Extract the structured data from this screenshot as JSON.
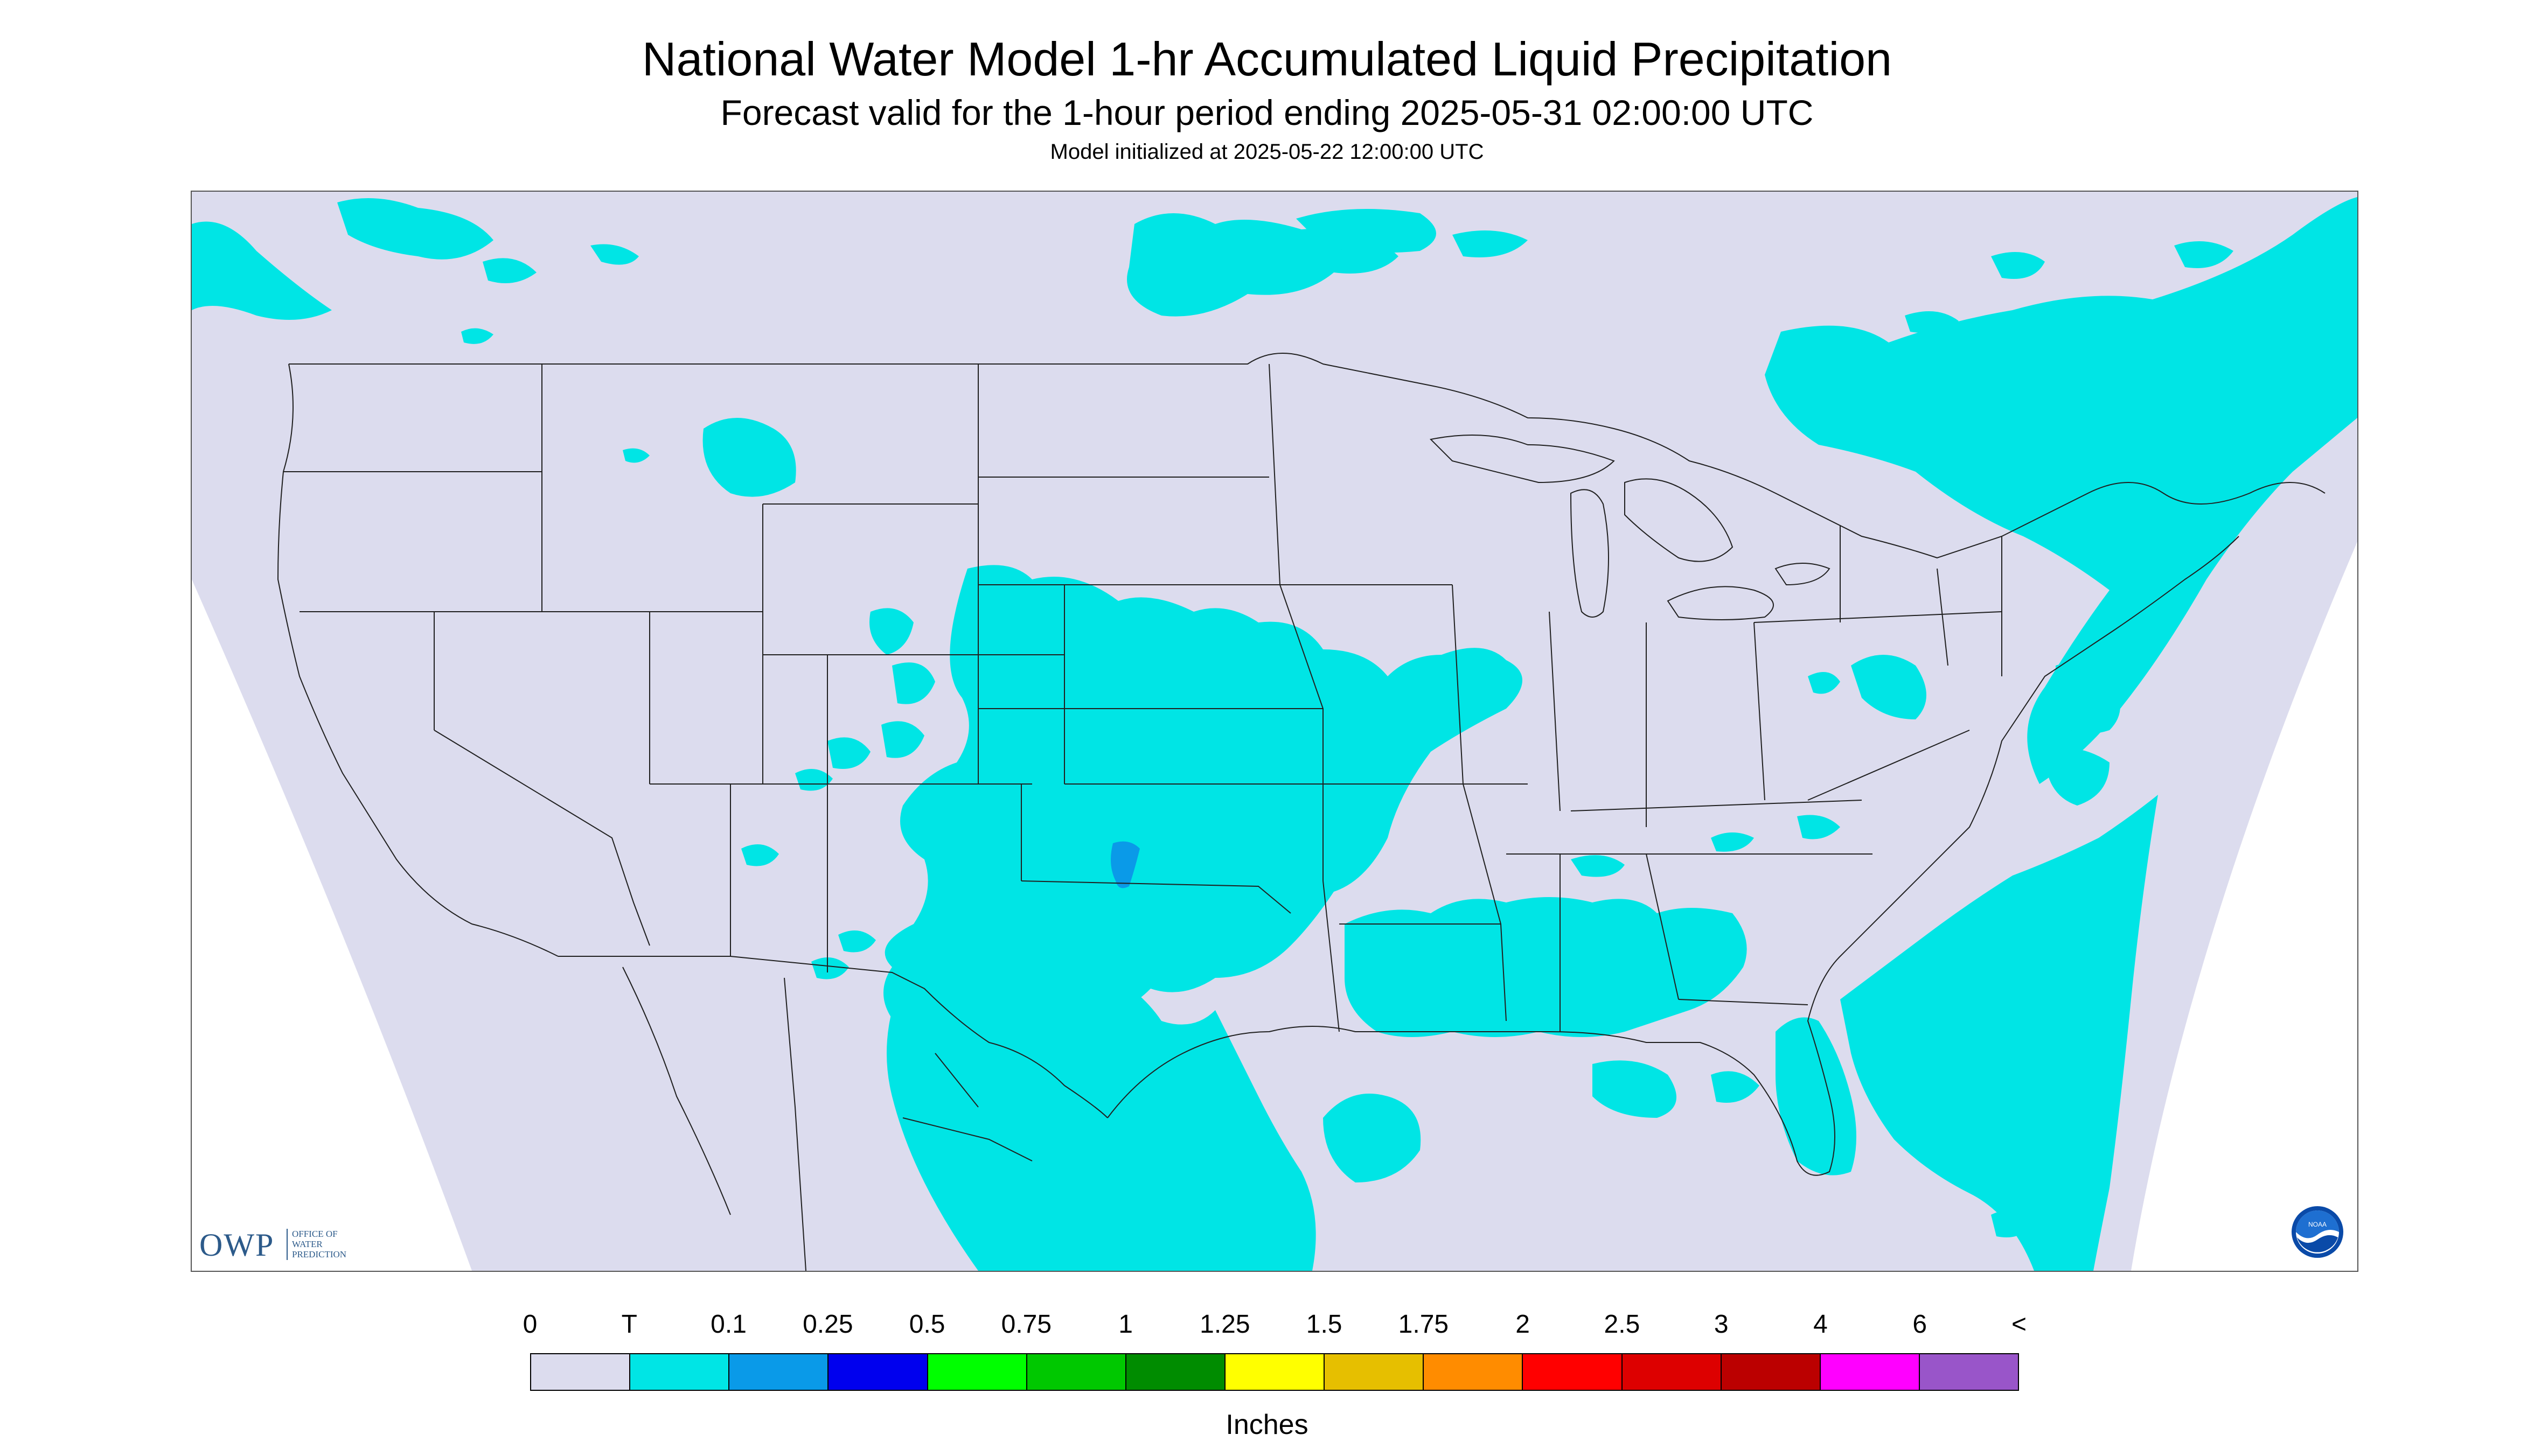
{
  "title": "National Water Model 1-hr Accumulated Liquid Precipitation",
  "subtitle": "Forecast valid for the 1-hour period ending 2025-05-31 02:00:00 UTC",
  "model_init": "Model initialized at 2025-05-22 12:00:00 UTC",
  "colors": {
    "no_data": "#ffffff",
    "domain_zero": "#dcdcee",
    "trace": "#00e5e5",
    "light": "#0a9ae8",
    "boundary": "#202020"
  },
  "legend": {
    "labels": [
      "0",
      "T",
      "0.1",
      "0.25",
      "0.5",
      "0.75",
      "1",
      "1.25",
      "1.5",
      "1.75",
      "2",
      "2.5",
      "3",
      "4",
      "6",
      "<"
    ],
    "colors": [
      "#dcdcee",
      "#00e5e5",
      "#0a9ae8",
      "#0000ee",
      "#00ff00",
      "#00c800",
      "#008c00",
      "#ffff00",
      "#e6bf00",
      "#ff8c00",
      "#ff0000",
      "#dd0000",
      "#bb0000",
      "#ff00ff",
      "#9955c9"
    ],
    "units": "Inches"
  },
  "logos": {
    "owp_main": "OWP",
    "owp_sub": [
      "OFFICE OF",
      "WATER",
      "PREDICTION"
    ],
    "noaa": "NOAA"
  }
}
